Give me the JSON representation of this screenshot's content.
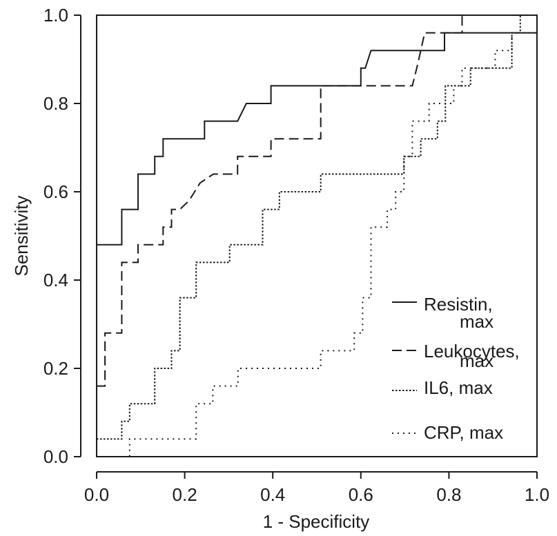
{
  "chart_data": {
    "type": "line",
    "title": "",
    "xlabel": "1 - Specificity",
    "ylabel": "Sensitivity",
    "xlim": [
      0.0,
      1.0
    ],
    "ylim": [
      0.0,
      1.0
    ],
    "x_tick_labels": [
      "0.0",
      "0.2",
      "0.4",
      "0.6",
      "0.8",
      "1.0"
    ],
    "y_tick_labels": [
      "0.0",
      "0.2",
      "0.4",
      "0.6",
      "0.8",
      "1.0"
    ],
    "grid": false,
    "legend_position": "bottom-right",
    "series": [
      {
        "name": "Resistin, max",
        "line_style": "solid",
        "color": "#1a1a1a",
        "points": [
          [
            0.0,
            0.0
          ],
          [
            0.0,
            0.48
          ],
          [
            0.057,
            0.48
          ],
          [
            0.057,
            0.56
          ],
          [
            0.094,
            0.56
          ],
          [
            0.094,
            0.64
          ],
          [
            0.132,
            0.64
          ],
          [
            0.132,
            0.68
          ],
          [
            0.151,
            0.68
          ],
          [
            0.151,
            0.72
          ],
          [
            0.245,
            0.72
          ],
          [
            0.245,
            0.76
          ],
          [
            0.32,
            0.76
          ],
          [
            0.34,
            0.8
          ],
          [
            0.396,
            0.8
          ],
          [
            0.396,
            0.84
          ],
          [
            0.6,
            0.84
          ],
          [
            0.6,
            0.88
          ],
          [
            0.61,
            0.88
          ],
          [
            0.623,
            0.92
          ],
          [
            0.79,
            0.92
          ],
          [
            0.79,
            0.96
          ],
          [
            1.0,
            0.96
          ],
          [
            1.0,
            1.0
          ]
        ]
      },
      {
        "name": "Leukocytes, max",
        "line_style": "dashed",
        "color": "#1a1a1a",
        "points": [
          [
            0.0,
            0.16
          ],
          [
            0.019,
            0.16
          ],
          [
            0.019,
            0.28
          ],
          [
            0.057,
            0.28
          ],
          [
            0.057,
            0.44
          ],
          [
            0.094,
            0.44
          ],
          [
            0.094,
            0.48
          ],
          [
            0.151,
            0.48
          ],
          [
            0.151,
            0.52
          ],
          [
            0.17,
            0.52
          ],
          [
            0.17,
            0.56
          ],
          [
            0.189,
            0.56
          ],
          [
            0.21,
            0.58
          ],
          [
            0.235,
            0.62
          ],
          [
            0.265,
            0.64
          ],
          [
            0.32,
            0.64
          ],
          [
            0.32,
            0.68
          ],
          [
            0.35,
            0.68
          ],
          [
            0.396,
            0.68
          ],
          [
            0.396,
            0.72
          ],
          [
            0.509,
            0.72
          ],
          [
            0.509,
            0.84
          ],
          [
            0.717,
            0.84
          ],
          [
            0.727,
            0.88
          ],
          [
            0.736,
            0.92
          ],
          [
            0.745,
            0.96
          ],
          [
            0.83,
            0.96
          ],
          [
            0.83,
            1.0
          ],
          [
            1.0,
            1.0
          ]
        ]
      },
      {
        "name": "IL6, max",
        "line_style": "dotted",
        "color": "#1a1a1a",
        "points": [
          [
            0.0,
            0.04
          ],
          [
            0.057,
            0.04
          ],
          [
            0.057,
            0.08
          ],
          [
            0.075,
            0.08
          ],
          [
            0.075,
            0.12
          ],
          [
            0.132,
            0.12
          ],
          [
            0.132,
            0.2
          ],
          [
            0.17,
            0.2
          ],
          [
            0.17,
            0.24
          ],
          [
            0.189,
            0.24
          ],
          [
            0.189,
            0.36
          ],
          [
            0.226,
            0.36
          ],
          [
            0.226,
            0.44
          ],
          [
            0.302,
            0.44
          ],
          [
            0.302,
            0.48
          ],
          [
            0.377,
            0.48
          ],
          [
            0.377,
            0.56
          ],
          [
            0.415,
            0.56
          ],
          [
            0.415,
            0.6
          ],
          [
            0.509,
            0.6
          ],
          [
            0.509,
            0.64
          ],
          [
            0.698,
            0.64
          ],
          [
            0.698,
            0.68
          ],
          [
            0.736,
            0.68
          ],
          [
            0.736,
            0.72
          ],
          [
            0.774,
            0.72
          ],
          [
            0.774,
            0.76
          ],
          [
            0.792,
            0.76
          ],
          [
            0.792,
            0.84
          ],
          [
            0.849,
            0.84
          ],
          [
            0.849,
            0.88
          ],
          [
            0.943,
            0.88
          ],
          [
            0.943,
            0.96
          ],
          [
            0.962,
            0.96
          ],
          [
            0.962,
            1.0
          ],
          [
            1.0,
            1.0
          ]
        ]
      },
      {
        "name": "CRP, max",
        "line_style": "dotted",
        "color": "#1a1a1a",
        "points": [
          [
            0.0,
            0.0
          ],
          [
            0.075,
            0.0
          ],
          [
            0.075,
            0.04
          ],
          [
            0.226,
            0.04
          ],
          [
            0.226,
            0.12
          ],
          [
            0.264,
            0.12
          ],
          [
            0.264,
            0.16
          ],
          [
            0.321,
            0.16
          ],
          [
            0.321,
            0.2
          ],
          [
            0.509,
            0.2
          ],
          [
            0.509,
            0.24
          ],
          [
            0.585,
            0.24
          ],
          [
            0.585,
            0.28
          ],
          [
            0.604,
            0.28
          ],
          [
            0.604,
            0.36
          ],
          [
            0.623,
            0.36
          ],
          [
            0.623,
            0.52
          ],
          [
            0.66,
            0.52
          ],
          [
            0.66,
            0.56
          ],
          [
            0.679,
            0.56
          ],
          [
            0.679,
            0.6
          ],
          [
            0.698,
            0.6
          ],
          [
            0.698,
            0.68
          ],
          [
            0.717,
            0.68
          ],
          [
            0.717,
            0.76
          ],
          [
            0.755,
            0.76
          ],
          [
            0.755,
            0.8
          ],
          [
            0.811,
            0.8
          ],
          [
            0.811,
            0.84
          ],
          [
            0.83,
            0.84
          ],
          [
            0.83,
            0.88
          ],
          [
            0.905,
            0.88
          ],
          [
            0.905,
            0.92
          ],
          [
            0.943,
            0.92
          ],
          [
            0.943,
            0.96
          ],
          [
            1.0,
            0.96
          ],
          [
            1.0,
            1.0
          ]
        ]
      }
    ]
  }
}
